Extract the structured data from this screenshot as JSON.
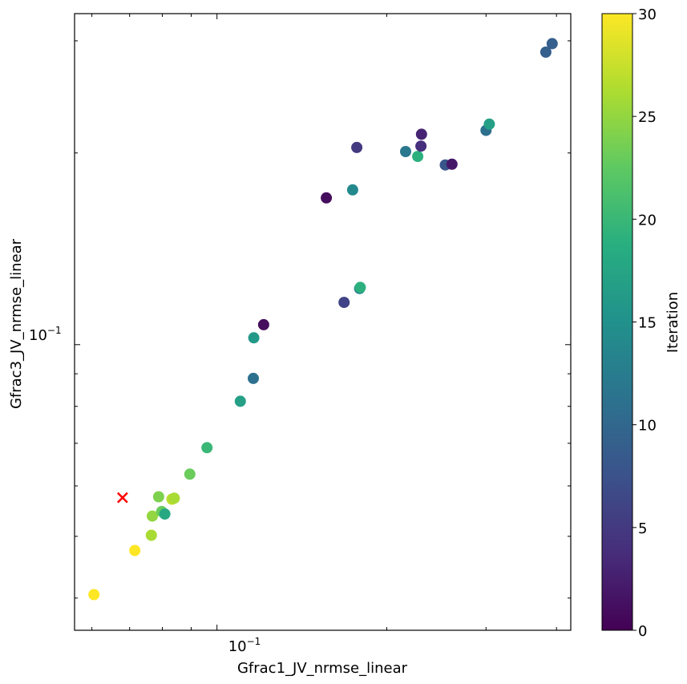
{
  "chart_data": {
    "type": "scatter",
    "title": "",
    "xlabel": "Gfrac1_JV_nrmse_linear",
    "ylabel": "Gfrac3_JV_nrmse_linear",
    "x_scale": "log",
    "y_scale": "log",
    "xlim": [
      0.0559,
      0.424
    ],
    "ylim": [
      0.0356,
      0.331
    ],
    "x_tick_labels": [
      {
        "value": 0.1,
        "base": "10",
        "exp": "−1"
      }
    ],
    "y_tick_labels": [
      {
        "value": 0.1,
        "base": "10",
        "exp": "−1"
      }
    ],
    "colorbar": {
      "label": "Iteration",
      "colormap": "viridis",
      "range": [
        0,
        30
      ],
      "ticks": [
        "0",
        "5",
        "10",
        "15",
        "20",
        "25",
        "30"
      ]
    },
    "points": [
      {
        "x": 0.0605,
        "y": 0.0405,
        "iteration": 30
      },
      {
        "x": 0.0715,
        "y": 0.0475,
        "iteration": 30
      },
      {
        "x": 0.0765,
        "y": 0.0502,
        "iteration": 26
      },
      {
        "x": 0.0768,
        "y": 0.0538,
        "iteration": 25
      },
      {
        "x": 0.0788,
        "y": 0.0577,
        "iteration": 24
      },
      {
        "x": 0.0798,
        "y": 0.0547,
        "iteration": 23
      },
      {
        "x": 0.0808,
        "y": 0.0542,
        "iteration": 18
      },
      {
        "x": 0.0832,
        "y": 0.0572,
        "iteration": 27
      },
      {
        "x": 0.084,
        "y": 0.0574,
        "iteration": 26
      },
      {
        "x": 0.0895,
        "y": 0.0626,
        "iteration": 23
      },
      {
        "x": 0.096,
        "y": 0.0689,
        "iteration": 20
      },
      {
        "x": 0.11,
        "y": 0.0815,
        "iteration": 17
      },
      {
        "x": 0.116,
        "y": 0.0885,
        "iteration": 11
      },
      {
        "x": 0.1162,
        "y": 0.1025,
        "iteration": 16
      },
      {
        "x": 0.121,
        "y": 0.1075,
        "iteration": 1
      },
      {
        "x": 0.168,
        "y": 0.1165,
        "iteration": 6
      },
      {
        "x": 0.179,
        "y": 0.1225,
        "iteration": 13
      },
      {
        "x": 0.1795,
        "y": 0.123,
        "iteration": 19
      },
      {
        "x": 0.1563,
        "y": 0.17,
        "iteration": 1
      },
      {
        "x": 0.174,
        "y": 0.175,
        "iteration": 14
      },
      {
        "x": 0.177,
        "y": 0.204,
        "iteration": 5
      },
      {
        "x": 0.216,
        "y": 0.201,
        "iteration": 12
      },
      {
        "x": 0.227,
        "y": 0.1975,
        "iteration": 19
      },
      {
        "x": 0.23,
        "y": 0.205,
        "iteration": 4
      },
      {
        "x": 0.2305,
        "y": 0.214,
        "iteration": 3
      },
      {
        "x": 0.254,
        "y": 0.1915,
        "iteration": 8
      },
      {
        "x": 0.261,
        "y": 0.192,
        "iteration": 2
      },
      {
        "x": 0.3,
        "y": 0.217,
        "iteration": 11
      },
      {
        "x": 0.304,
        "y": 0.222,
        "iteration": 17
      },
      {
        "x": 0.383,
        "y": 0.288,
        "iteration": 9
      },
      {
        "x": 0.393,
        "y": 0.297,
        "iteration": 9
      }
    ],
    "markers": [
      {
        "x": 0.068,
        "y": 0.0575,
        "symbol": "x",
        "color": "#ff0000"
      }
    ]
  }
}
